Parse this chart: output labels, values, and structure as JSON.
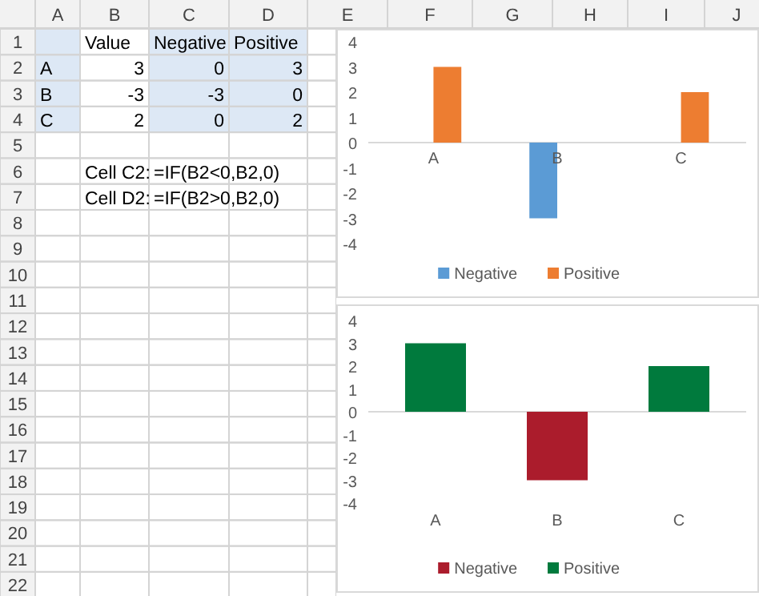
{
  "chart_data": [
    {
      "type": "heatmap",
      "categories": [
        "A",
        "B",
        "C",
        "D",
        "E",
        "F",
        "G",
        "H",
        "I",
        "J"
      ],
      "y_categories": [
        "1",
        "2",
        "3",
        "4",
        "5",
        "6",
        "7",
        "8",
        "9",
        "10",
        "11",
        "12",
        "13",
        "14",
        "15",
        "16",
        "17",
        "18",
        "19",
        "20",
        "21",
        "22"
      ],
      "cells": [
        [
          null,
          null,
          null,
          null,
          null,
          null,
          null,
          null,
          null,
          null
        ],
        [
          null,
          null,
          null,
          null,
          null,
          null,
          null,
          null,
          null,
          null
        ],
        [
          null,
          null,
          null,
          null,
          null,
          null,
          null,
          null,
          null,
          null
        ],
        [
          null,
          null,
          null,
          null,
          null,
          null,
          null,
          null,
          null,
          null
        ],
        [
          null,
          null,
          null,
          null,
          null,
          null,
          null,
          null,
          null,
          null
        ],
        [
          null,
          null,
          null,
          null,
          null,
          null,
          null,
          null,
          null,
          null
        ],
        [
          null,
          null,
          null,
          null,
          null,
          null,
          null,
          null,
          null,
          null
        ],
        [
          null,
          null,
          null,
          null,
          null,
          null,
          null,
          null,
          null,
          null
        ],
        [
          null,
          null,
          null,
          null,
          null,
          null,
          null,
          null,
          null,
          null
        ],
        [
          null,
          null,
          null,
          null,
          null,
          null,
          null,
          null,
          null,
          null
        ],
        [
          null,
          null,
          null,
          null,
          null,
          null,
          null,
          null,
          null,
          null
        ],
        [
          null,
          null,
          null,
          null,
          null,
          null,
          null,
          null,
          null,
          null
        ],
        [
          null,
          null,
          null,
          null,
          null,
          null,
          null,
          null,
          null,
          null
        ],
        [
          null,
          null,
          null,
          null,
          null,
          null,
          null,
          null,
          null,
          null
        ],
        [
          null,
          null,
          null,
          null,
          null,
          null,
          null,
          null,
          null,
          null
        ],
        [
          null,
          null,
          null,
          null,
          null,
          null,
          null,
          null,
          null,
          null
        ],
        [
          null,
          null,
          null,
          null,
          null,
          null,
          null,
          null,
          null,
          null
        ],
        [
          null,
          null,
          null,
          null,
          null,
          null,
          null,
          null,
          null,
          null
        ],
        [
          null,
          null,
          null,
          null,
          null,
          null,
          null,
          null,
          null,
          null
        ],
        [
          null,
          null,
          null,
          null,
          null,
          null,
          null,
          null,
          null,
          null
        ],
        [
          null,
          null,
          null,
          null,
          null,
          null,
          null,
          null,
          null,
          null
        ],
        [
          null,
          null,
          null,
          null,
          null,
          null,
          null,
          null,
          null,
          null
        ]
      ],
      "cell_labels": [
        [
          null,
          "Value",
          "Negative",
          "Positive",
          null,
          null,
          null,
          null,
          null,
          null
        ],
        [
          "A",
          "3",
          "0",
          "3",
          null,
          null,
          null,
          null,
          null,
          null
        ],
        [
          "B",
          "-3",
          "-3",
          "0",
          null,
          null,
          null,
          null,
          null,
          null
        ],
        [
          "C",
          "2",
          "0",
          "2",
          null,
          null,
          null,
          null,
          null,
          null
        ],
        [
          null,
          null,
          null,
          null,
          null,
          null,
          null,
          null,
          null,
          null
        ],
        [
          null,
          "Cell C2:",
          "=IF(B2<0,B2,0)",
          null,
          null,
          null,
          null,
          null,
          null,
          null
        ],
        [
          null,
          "Cell D2:",
          "=IF(B2>0,B2,0)",
          null,
          null,
          null,
          null,
          null,
          null,
          null
        ],
        [
          null,
          null,
          null,
          null,
          null,
          null,
          null,
          null,
          null,
          null
        ],
        [
          null,
          null,
          null,
          null,
          null,
          null,
          null,
          null,
          null,
          null
        ],
        [
          null,
          null,
          null,
          null,
          null,
          null,
          null,
          null,
          null,
          null
        ],
        [
          null,
          null,
          null,
          null,
          null,
          null,
          null,
          null,
          null,
          null
        ],
        [
          null,
          null,
          null,
          null,
          null,
          null,
          null,
          null,
          null,
          null
        ],
        [
          null,
          null,
          null,
          null,
          null,
          null,
          null,
          null,
          null,
          null
        ],
        [
          null,
          null,
          null,
          null,
          null,
          null,
          null,
          null,
          null,
          null
        ],
        [
          null,
          null,
          null,
          null,
          null,
          null,
          null,
          null,
          null,
          null
        ],
        [
          null,
          null,
          null,
          null,
          null,
          null,
          null,
          null,
          null,
          null
        ],
        [
          null,
          null,
          null,
          null,
          null,
          null,
          null,
          null,
          null,
          null
        ],
        [
          null,
          null,
          null,
          null,
          null,
          null,
          null,
          null,
          null,
          null
        ],
        [
          null,
          null,
          null,
          null,
          null,
          null,
          null,
          null,
          null,
          null
        ],
        [
          null,
          null,
          null,
          null,
          null,
          null,
          null,
          null,
          null,
          null
        ],
        [
          null,
          null,
          null,
          null,
          null,
          null,
          null,
          null,
          null,
          null
        ],
        [
          null,
          null,
          null,
          null,
          null,
          null,
          null,
          null,
          null,
          null
        ]
      ]
    },
    {
      "type": "bar",
      "categories": [
        "A",
        "B",
        "C"
      ],
      "series": [
        {
          "name": "Negative",
          "color": "#5b9bd5",
          "values": [
            0,
            -3,
            0
          ]
        },
        {
          "name": "Positive",
          "color": "#ed7d31",
          "values": [
            3,
            0,
            2
          ]
        }
      ],
      "ylim": [
        -4,
        4
      ],
      "yticks": [
        -4,
        -3,
        -2,
        -1,
        0,
        1,
        2,
        3,
        4
      ],
      "legend": "bottom"
    },
    {
      "type": "bar",
      "stacked": true,
      "categories": [
        "A",
        "B",
        "C"
      ],
      "series": [
        {
          "name": "Negative",
          "color": "#ab1c2c",
          "values": [
            0,
            -3,
            0
          ]
        },
        {
          "name": "Positive",
          "color": "#007a3d",
          "values": [
            3,
            0,
            2
          ]
        }
      ],
      "ylim": [
        -4,
        4
      ],
      "yticks": [
        -4,
        -3,
        -2,
        -1,
        0,
        1,
        2,
        3,
        4
      ],
      "legend": "bottom"
    }
  ]
}
